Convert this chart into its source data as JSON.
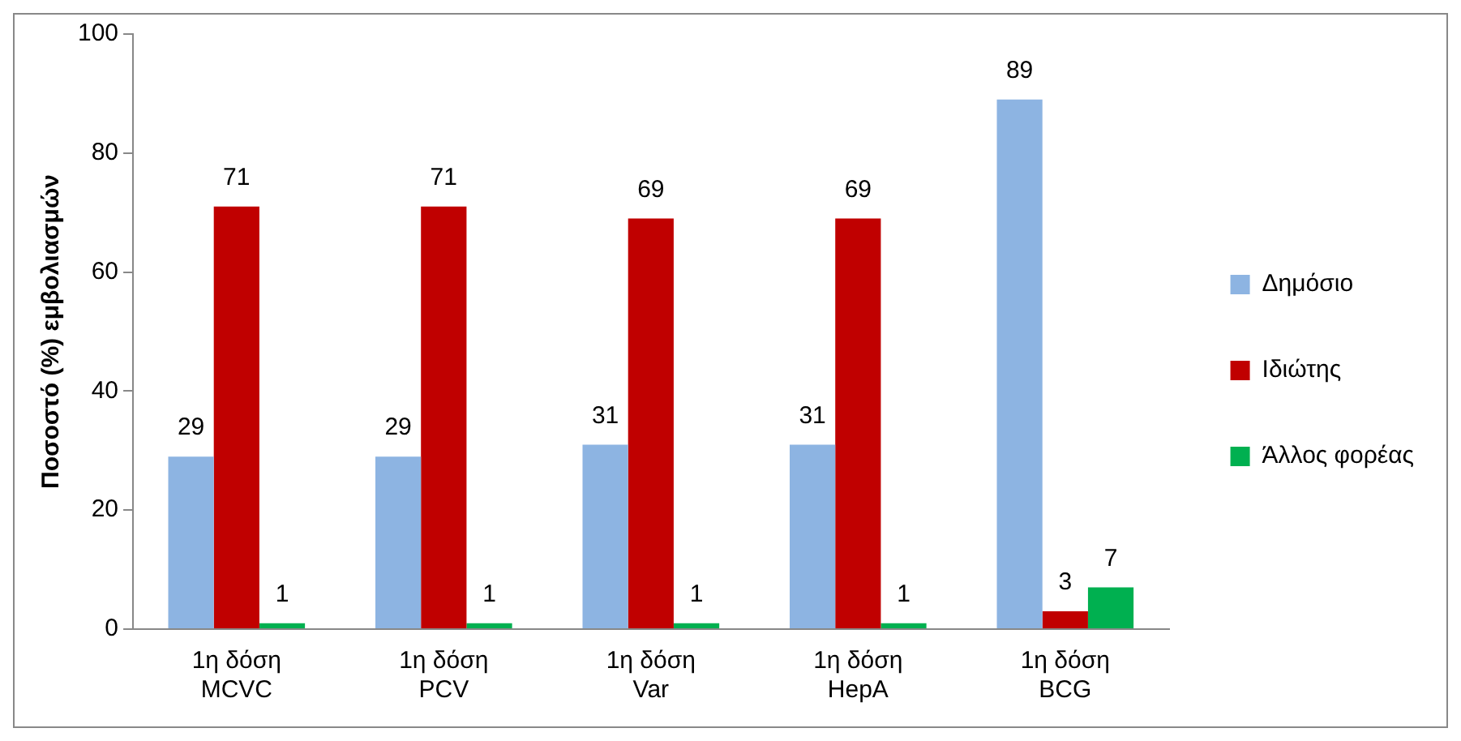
{
  "chart_data": {
    "type": "bar",
    "ylabel": "Ποσοστό (%) εμβολιασμών",
    "categories": [
      "1η δόση\nMCVC",
      "1η δόση\nPCV",
      "1η δόση\nVar",
      "1η δόση\nHepA",
      "1η δόση\nBCG"
    ],
    "series": [
      {
        "name": "Δημόσιο",
        "color": "#8db4e2",
        "values": [
          29,
          29,
          31,
          31,
          89
        ]
      },
      {
        "name": "Ιδιώτης",
        "color": "#c00000",
        "values": [
          71,
          71,
          69,
          69,
          3
        ]
      },
      {
        "name": "Άλλος φορέας",
        "color": "#00b050",
        "values": [
          1,
          1,
          1,
          1,
          7
        ]
      }
    ],
    "ylim": [
      0,
      100
    ],
    "yticks": [
      0,
      20,
      40,
      60,
      80,
      100
    ],
    "grid": false,
    "legend": "right",
    "data_labels": true
  }
}
